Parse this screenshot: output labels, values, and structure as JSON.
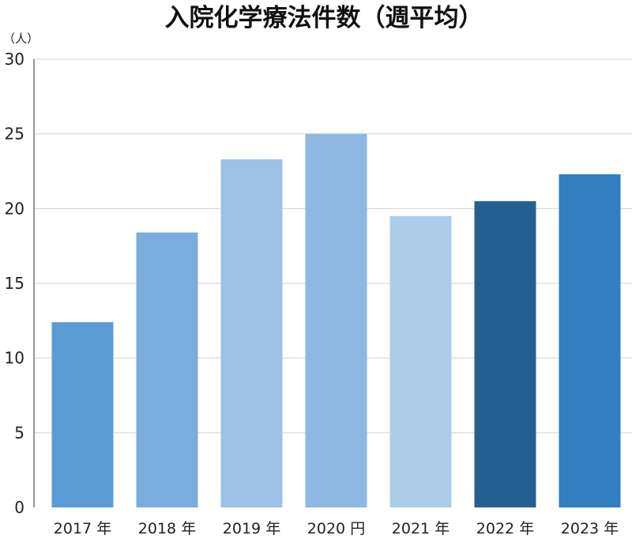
{
  "chart_data": {
    "type": "bar",
    "title": "入院化学療法件数（週平均）",
    "ylabel": "（人）",
    "xlabel": "",
    "categories": [
      "2017 年",
      "2018 年",
      "2019 年",
      "2020 円",
      "2021 年",
      "2022 年",
      "2023 年"
    ],
    "values": [
      12.4,
      18.4,
      23.3,
      25.0,
      19.5,
      20.5,
      22.3
    ],
    "colors": [
      "#5b9bd5",
      "#7aaddd",
      "#9dc1e6",
      "#8cb8e1",
      "#acccea",
      "#255f91",
      "#337dc1"
    ],
    "ylim": [
      0,
      30
    ],
    "yticks": [
      0,
      5,
      10,
      15,
      20,
      25,
      30
    ],
    "grid": true
  }
}
